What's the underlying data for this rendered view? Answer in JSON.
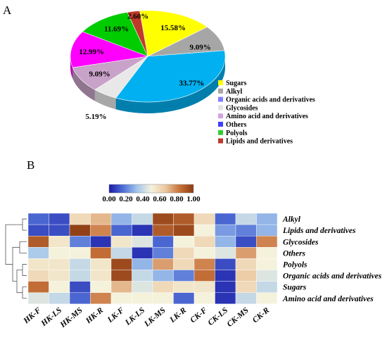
{
  "panels": {
    "a_label": "A",
    "b_label": "B"
  },
  "chart_data": [
    {
      "type": "pie",
      "categories": [
        "Sugars",
        "Alkyl",
        "Organic acids and derivatives",
        "Glycosides",
        "Amino acid and derivatives",
        "Others",
        "Polyols",
        "Lipids and derivatives"
      ],
      "values": [
        15.58,
        9.09,
        33.77,
        5.19,
        9.09,
        12.99,
        11.69,
        2.6
      ],
      "labels": [
        "15.58%",
        "9.09%",
        "33.77%",
        "5.19%",
        "9.09%",
        "12.99%",
        "11.69%",
        "2.60%"
      ],
      "colors": [
        "#ffff00",
        "#a6a6a6",
        "#00b0f0",
        "#e8e8e8",
        "#c8a2c8",
        "#ff00ff",
        "#00cc00",
        "#c0392b"
      ],
      "legend_colors": [
        "#ffff00",
        "#a6a6a6",
        "#7f7fff",
        "#e3e3e3",
        "#cfa4df",
        "#3f3fff",
        "#33cc33",
        "#c0392b"
      ],
      "legend": "right",
      "projection": "3d"
    },
    {
      "type": "heatmap",
      "columns": [
        "HK-F",
        "HK-LS",
        "HK-MS",
        "HK-R",
        "LK-F",
        "LK-LS",
        "LK-MS",
        "LK-R",
        "CK-F",
        "CK-LS",
        "CK-MS",
        "CK-R"
      ],
      "rows": [
        "Alkyl",
        "Lipids and derivatives",
        "Glycosides",
        "Others",
        "Polyols",
        "Organic acids and derivatives",
        "Sugars",
        "Amino acid and derivatives"
      ],
      "values": [
        [
          0.15,
          0.1,
          0.6,
          0.7,
          0.3,
          0.4,
          0.95,
          0.9,
          0.6,
          0.15,
          0.4,
          0.3
        ],
        [
          0.1,
          0.1,
          0.98,
          0.8,
          0.15,
          0.05,
          0.9,
          0.95,
          0.5,
          0.25,
          0.2,
          0.3
        ],
        [
          0.9,
          0.55,
          0.2,
          0.05,
          0.55,
          0.45,
          0.15,
          0.5,
          0.6,
          0.3,
          0.1,
          0.8
        ],
        [
          0.35,
          0.5,
          0.5,
          0.85,
          0.4,
          0.05,
          0.2,
          0.6,
          0.5,
          0.45,
          0.75,
          0.5
        ],
        [
          0.55,
          0.55,
          0.4,
          0.55,
          0.95,
          0.3,
          0.75,
          0.6,
          0.8,
          0.1,
          0.6,
          0.5
        ],
        [
          0.6,
          0.55,
          0.4,
          0.55,
          0.95,
          0.4,
          0.3,
          0.2,
          0.85,
          0.05,
          0.65,
          0.45
        ],
        [
          0.85,
          0.5,
          0.1,
          0.5,
          0.7,
          0.45,
          0.6,
          0.55,
          0.55,
          0.05,
          0.6,
          0.4
        ],
        [
          0.45,
          0.4,
          0.15,
          0.8,
          0.5,
          0.5,
          0.5,
          0.15,
          0.5,
          0.05,
          0.4,
          0.5
        ]
      ],
      "scale_ticks": [
        0.0,
        0.2,
        0.4,
        0.6,
        0.8,
        1.0
      ],
      "scale_tick_labels": [
        "0.00",
        "0.20",
        "0.40",
        "0.60",
        "0.80",
        "1.00"
      ],
      "colormap": [
        "#1a1aa6",
        "#4f6fd6",
        "#a4c6ec",
        "#f5f2dc",
        "#ebc9a1",
        "#c8733a",
        "#8b3a12"
      ],
      "row_dendrogram": true
    }
  ]
}
